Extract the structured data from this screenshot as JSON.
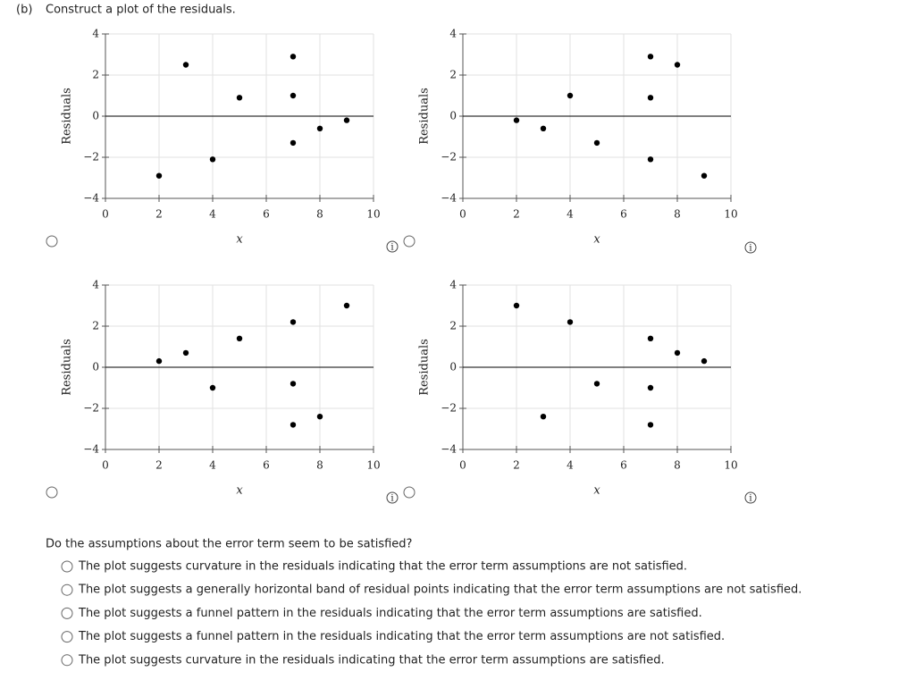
{
  "header": {
    "label": "(b)",
    "text": "Construct a plot of the residuals."
  },
  "chart_data": [
    {
      "type": "scatter",
      "x_label": "x",
      "y_label": "Residuals",
      "x": [
        2,
        3,
        4,
        5,
        7,
        7,
        7,
        8,
        9
      ],
      "values": [
        -2.9,
        2.5,
        -2.1,
        0.9,
        2.9,
        1.0,
        -1.3,
        -0.6,
        -0.2
      ],
      "xlim": [
        0,
        10
      ],
      "ylim": [
        -4,
        4
      ],
      "xticks": [
        0,
        2,
        4,
        6,
        8,
        10
      ],
      "yticks": [
        {
          "value": -4,
          "label": "−4"
        },
        {
          "value": -2,
          "label": "−2"
        },
        0,
        2,
        4
      ],
      "grid": true,
      "color": "#000000"
    },
    {
      "type": "scatter",
      "x_label": "x",
      "y_label": "Residuals",
      "x": [
        2,
        3,
        4,
        5,
        7,
        7,
        7,
        8,
        9
      ],
      "values": [
        -0.2,
        -0.6,
        1.0,
        -1.3,
        2.9,
        0.9,
        -2.1,
        2.5,
        -2.9
      ],
      "xlim": [
        0,
        10
      ],
      "ylim": [
        -4,
        4
      ],
      "xticks": [
        0,
        2,
        4,
        6,
        8,
        10
      ],
      "yticks": [
        {
          "value": -4,
          "label": "−4"
        },
        {
          "value": -2,
          "label": "−2"
        },
        0,
        2,
        4
      ],
      "grid": true,
      "color": "#000000"
    },
    {
      "type": "scatter",
      "x_label": "x",
      "y_label": "Residuals",
      "x": [
        2,
        3,
        4,
        5,
        7,
        7,
        7,
        8,
        9
      ],
      "values": [
        0.3,
        0.7,
        -1.0,
        1.4,
        2.2,
        -0.8,
        -2.8,
        -2.4,
        3.0
      ],
      "xlim": [
        0,
        10
      ],
      "ylim": [
        -4,
        4
      ],
      "xticks": [
        0,
        2,
        4,
        6,
        8,
        10
      ],
      "yticks": [
        {
          "value": -4,
          "label": "−4"
        },
        {
          "value": -2,
          "label": "−2"
        },
        0,
        2,
        4
      ],
      "grid": true,
      "color": "#000000"
    },
    {
      "type": "scatter",
      "x_label": "x",
      "y_label": "Residuals",
      "x": [
        2,
        3,
        4,
        5,
        7,
        7,
        7,
        8,
        9
      ],
      "values": [
        3.0,
        -2.4,
        2.2,
        -0.8,
        1.4,
        -1.0,
        -2.8,
        0.7,
        0.3
      ],
      "xlim": [
        0,
        10
      ],
      "ylim": [
        -4,
        4
      ],
      "xticks": [
        0,
        2,
        4,
        6,
        8,
        10
      ],
      "yticks": [
        {
          "value": -4,
          "label": "−4"
        },
        {
          "value": -2,
          "label": "−2"
        },
        0,
        2,
        4
      ],
      "grid": true,
      "color": "#000000"
    }
  ],
  "question": {
    "text": "Do the assumptions about the error term seem to be satisfied?",
    "options": [
      "The plot suggests curvature in the residuals indicating that the error term assumptions are not satisfied.",
      "The plot suggests a generally horizontal band of residual points indicating that the error term assumptions are not satisfied.",
      "The plot suggests a funnel pattern in the residuals indicating that the error term assumptions are satisfied.",
      "The plot suggests a funnel pattern in the residuals indicating that the error term assumptions are not satisfied.",
      "The plot suggests curvature in the residuals indicating that the error term assumptions are satisfied."
    ]
  }
}
